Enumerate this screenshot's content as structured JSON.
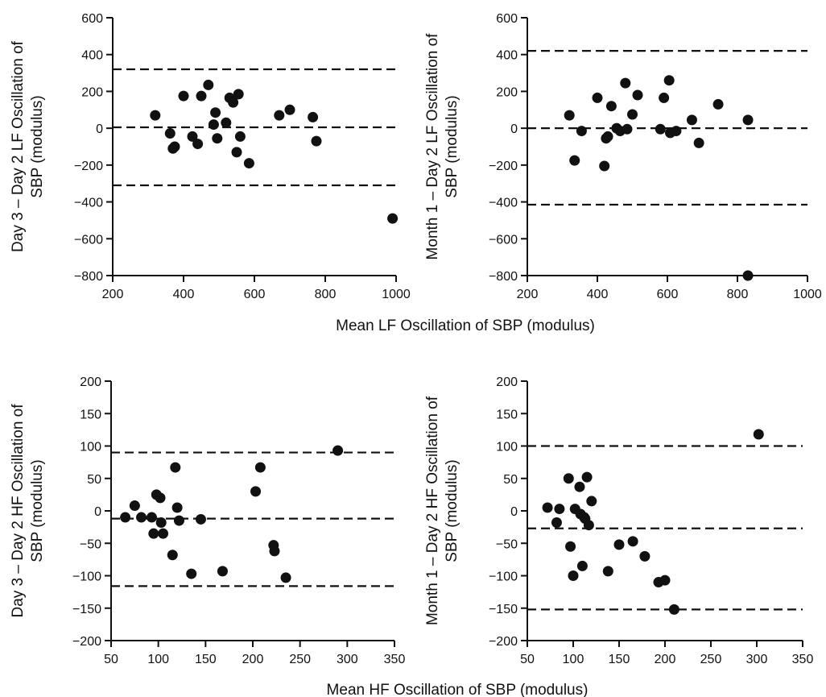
{
  "figure": {
    "top_xlabel": "Mean LF Oscillation of SBP (modulus)",
    "bottom_xlabel": "Mean HF Oscillation of SBP (modulus)"
  },
  "chart_data": [
    {
      "type": "scatter",
      "id": "top-left",
      "ylabel_line1": "Day 3 – Day 2 LF Oscillation of",
      "ylabel_line2": "SBP (modulus)",
      "xlim": [
        200,
        1000
      ],
      "ylim": [
        -800,
        600
      ],
      "xticks": [
        200,
        400,
        600,
        800,
        1000
      ],
      "xtick_labels": [
        "200",
        "400",
        "600",
        "800",
        "1000"
      ],
      "yticks": [
        -800,
        -600,
        -400,
        -200,
        0,
        200,
        400,
        600
      ],
      "ytick_labels": [
        "−800",
        "−600",
        "−400",
        "−200",
        "0",
        "200",
        "400",
        "600"
      ],
      "reference_lines": [
        320,
        5,
        -310
      ],
      "points": [
        [
          320,
          70
        ],
        [
          362,
          -28
        ],
        [
          370,
          -110
        ],
        [
          375,
          -100
        ],
        [
          400,
          175
        ],
        [
          425,
          -45
        ],
        [
          440,
          -85
        ],
        [
          450,
          175
        ],
        [
          470,
          235
        ],
        [
          485,
          20
        ],
        [
          490,
          85
        ],
        [
          495,
          -55
        ],
        [
          520,
          30
        ],
        [
          530,
          165
        ],
        [
          540,
          140
        ],
        [
          550,
          -130
        ],
        [
          555,
          185
        ],
        [
          560,
          -45
        ],
        [
          585,
          -190
        ],
        [
          670,
          70
        ],
        [
          700,
          100
        ],
        [
          765,
          60
        ],
        [
          775,
          -70
        ],
        [
          990,
          -490
        ]
      ]
    },
    {
      "type": "scatter",
      "id": "top-right",
      "ylabel_line1": "Month 1 – Day 2 LF Oscillation of",
      "ylabel_line2": "SBP (modulus)",
      "xlim": [
        200,
        1000
      ],
      "ylim": [
        -800,
        600
      ],
      "xticks": [
        200,
        400,
        600,
        800,
        1000
      ],
      "xtick_labels": [
        "200",
        "400",
        "600",
        "800",
        "1000"
      ],
      "yticks": [
        -800,
        -600,
        -400,
        -200,
        0,
        200,
        400,
        600
      ],
      "ytick_labels": [
        "−800",
        "−600",
        "−400",
        "−200",
        "0",
        "200",
        "400",
        "600"
      ],
      "reference_lines": [
        420,
        0,
        -415
      ],
      "points": [
        [
          320,
          70
        ],
        [
          335,
          -175
        ],
        [
          355,
          -15
        ],
        [
          400,
          165
        ],
        [
          420,
          -205
        ],
        [
          425,
          -55
        ],
        [
          430,
          -45
        ],
        [
          440,
          120
        ],
        [
          455,
          0
        ],
        [
          465,
          -15
        ],
        [
          480,
          245
        ],
        [
          485,
          -5
        ],
        [
          500,
          75
        ],
        [
          515,
          180
        ],
        [
          580,
          -5
        ],
        [
          590,
          165
        ],
        [
          605,
          260
        ],
        [
          608,
          -25
        ],
        [
          625,
          -15
        ],
        [
          670,
          45
        ],
        [
          690,
          -80
        ],
        [
          745,
          130
        ],
        [
          830,
          45
        ],
        [
          830,
          -800
        ]
      ]
    },
    {
      "type": "scatter",
      "id": "bottom-left",
      "ylabel_line1": "Day 3 – Day 2 HF Oscillation of",
      "ylabel_line2": "SBP (modulus)",
      "xlim": [
        50,
        350
      ],
      "ylim": [
        -200,
        200
      ],
      "xticks": [
        50,
        100,
        150,
        200,
        250,
        300,
        350
      ],
      "xtick_labels": [
        "50",
        "100",
        "150",
        "200",
        "250",
        "300",
        "350"
      ],
      "yticks": [
        -200,
        -150,
        -100,
        -50,
        0,
        50,
        100,
        150,
        200
      ],
      "ytick_labels": [
        "−200",
        "−150",
        "−100",
        "−50",
        "0",
        "50",
        "100",
        "150",
        "200"
      ],
      "reference_lines": [
        90,
        -12,
        -116
      ],
      "points": [
        [
          65,
          -10
        ],
        [
          75,
          8
        ],
        [
          82,
          -10
        ],
        [
          93,
          -10
        ],
        [
          95,
          -35
        ],
        [
          98,
          25
        ],
        [
          102,
          20
        ],
        [
          103,
          -18
        ],
        [
          105,
          -35
        ],
        [
          115,
          -68
        ],
        [
          118,
          67
        ],
        [
          120,
          5
        ],
        [
          122,
          -15
        ],
        [
          135,
          -97
        ],
        [
          145,
          -13
        ],
        [
          168,
          -93
        ],
        [
          203,
          30
        ],
        [
          208,
          67
        ],
        [
          222,
          -53
        ],
        [
          223,
          -62
        ],
        [
          235,
          -103
        ],
        [
          290,
          93
        ]
      ]
    },
    {
      "type": "scatter",
      "id": "bottom-right",
      "ylabel_line1": "Month 1 – Day 2 HF Oscillation of",
      "ylabel_line2": "SBP (modulus)",
      "xlim": [
        50,
        350
      ],
      "ylim": [
        -200,
        200
      ],
      "xticks": [
        50,
        100,
        150,
        200,
        250,
        300,
        350
      ],
      "xtick_labels": [
        "50",
        "100",
        "150",
        "200",
        "250",
        "300",
        "350"
      ],
      "yticks": [
        -200,
        -150,
        -100,
        -50,
        0,
        50,
        100,
        150,
        200
      ],
      "ytick_labels": [
        "−200",
        "−150",
        "−100",
        "−50",
        "0",
        "50",
        "100",
        "150",
        "200"
      ],
      "reference_lines": [
        100,
        -27,
        -152
      ],
      "points": [
        [
          72,
          5
        ],
        [
          82,
          -18
        ],
        [
          85,
          3
        ],
        [
          95,
          50
        ],
        [
          97,
          -55
        ],
        [
          100,
          -100
        ],
        [
          102,
          3
        ],
        [
          107,
          37
        ],
        [
          108,
          -5
        ],
        [
          110,
          -85
        ],
        [
          112,
          -10
        ],
        [
          113,
          -12
        ],
        [
          115,
          52
        ],
        [
          117,
          -22
        ],
        [
          120,
          15
        ],
        [
          138,
          -93
        ],
        [
          150,
          -52
        ],
        [
          165,
          -47
        ],
        [
          178,
          -70
        ],
        [
          193,
          -110
        ],
        [
          200,
          -107
        ],
        [
          210,
          -152
        ],
        [
          302,
          118
        ]
      ]
    }
  ]
}
